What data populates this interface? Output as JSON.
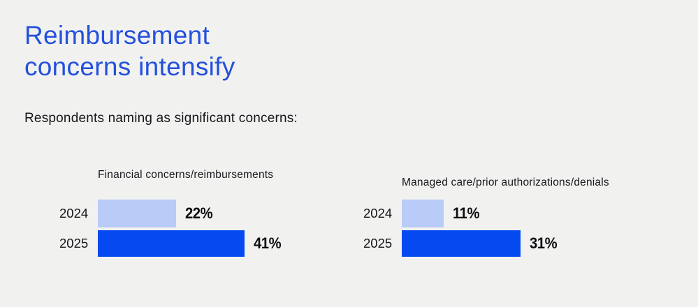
{
  "page": {
    "background_color": "#f1f2f0"
  },
  "header": {
    "title": "Reimbursement concerns intensify",
    "title_color": "#2450dc",
    "subtitle": "Respondents naming as significant concerns:"
  },
  "colors": {
    "bar_2024": "#b9ccf8",
    "bar_2025": "#0549f1",
    "text_dark": "#15171a"
  },
  "chart_data": [
    {
      "type": "bar",
      "orientation": "horizontal",
      "title": "Financial concerns/reimbursements",
      "categories": [
        "2024",
        "2025"
      ],
      "values": [
        22,
        41
      ],
      "value_labels": [
        "22%",
        "41%"
      ],
      "xlim": [
        0,
        45
      ],
      "grid": false,
      "legend": "none",
      "bar_colors": [
        "#b9ccf8",
        "#0549f1"
      ]
    },
    {
      "type": "bar",
      "orientation": "horizontal",
      "title": "Managed care/prior authorizations/denials",
      "categories": [
        "2024",
        "2025"
      ],
      "values": [
        11,
        31
      ],
      "value_labels": [
        "11%",
        "31%"
      ],
      "xlim": [
        0,
        42
      ],
      "grid": false,
      "legend": "none",
      "bar_colors": [
        "#b9ccf8",
        "#0549f1"
      ]
    }
  ]
}
